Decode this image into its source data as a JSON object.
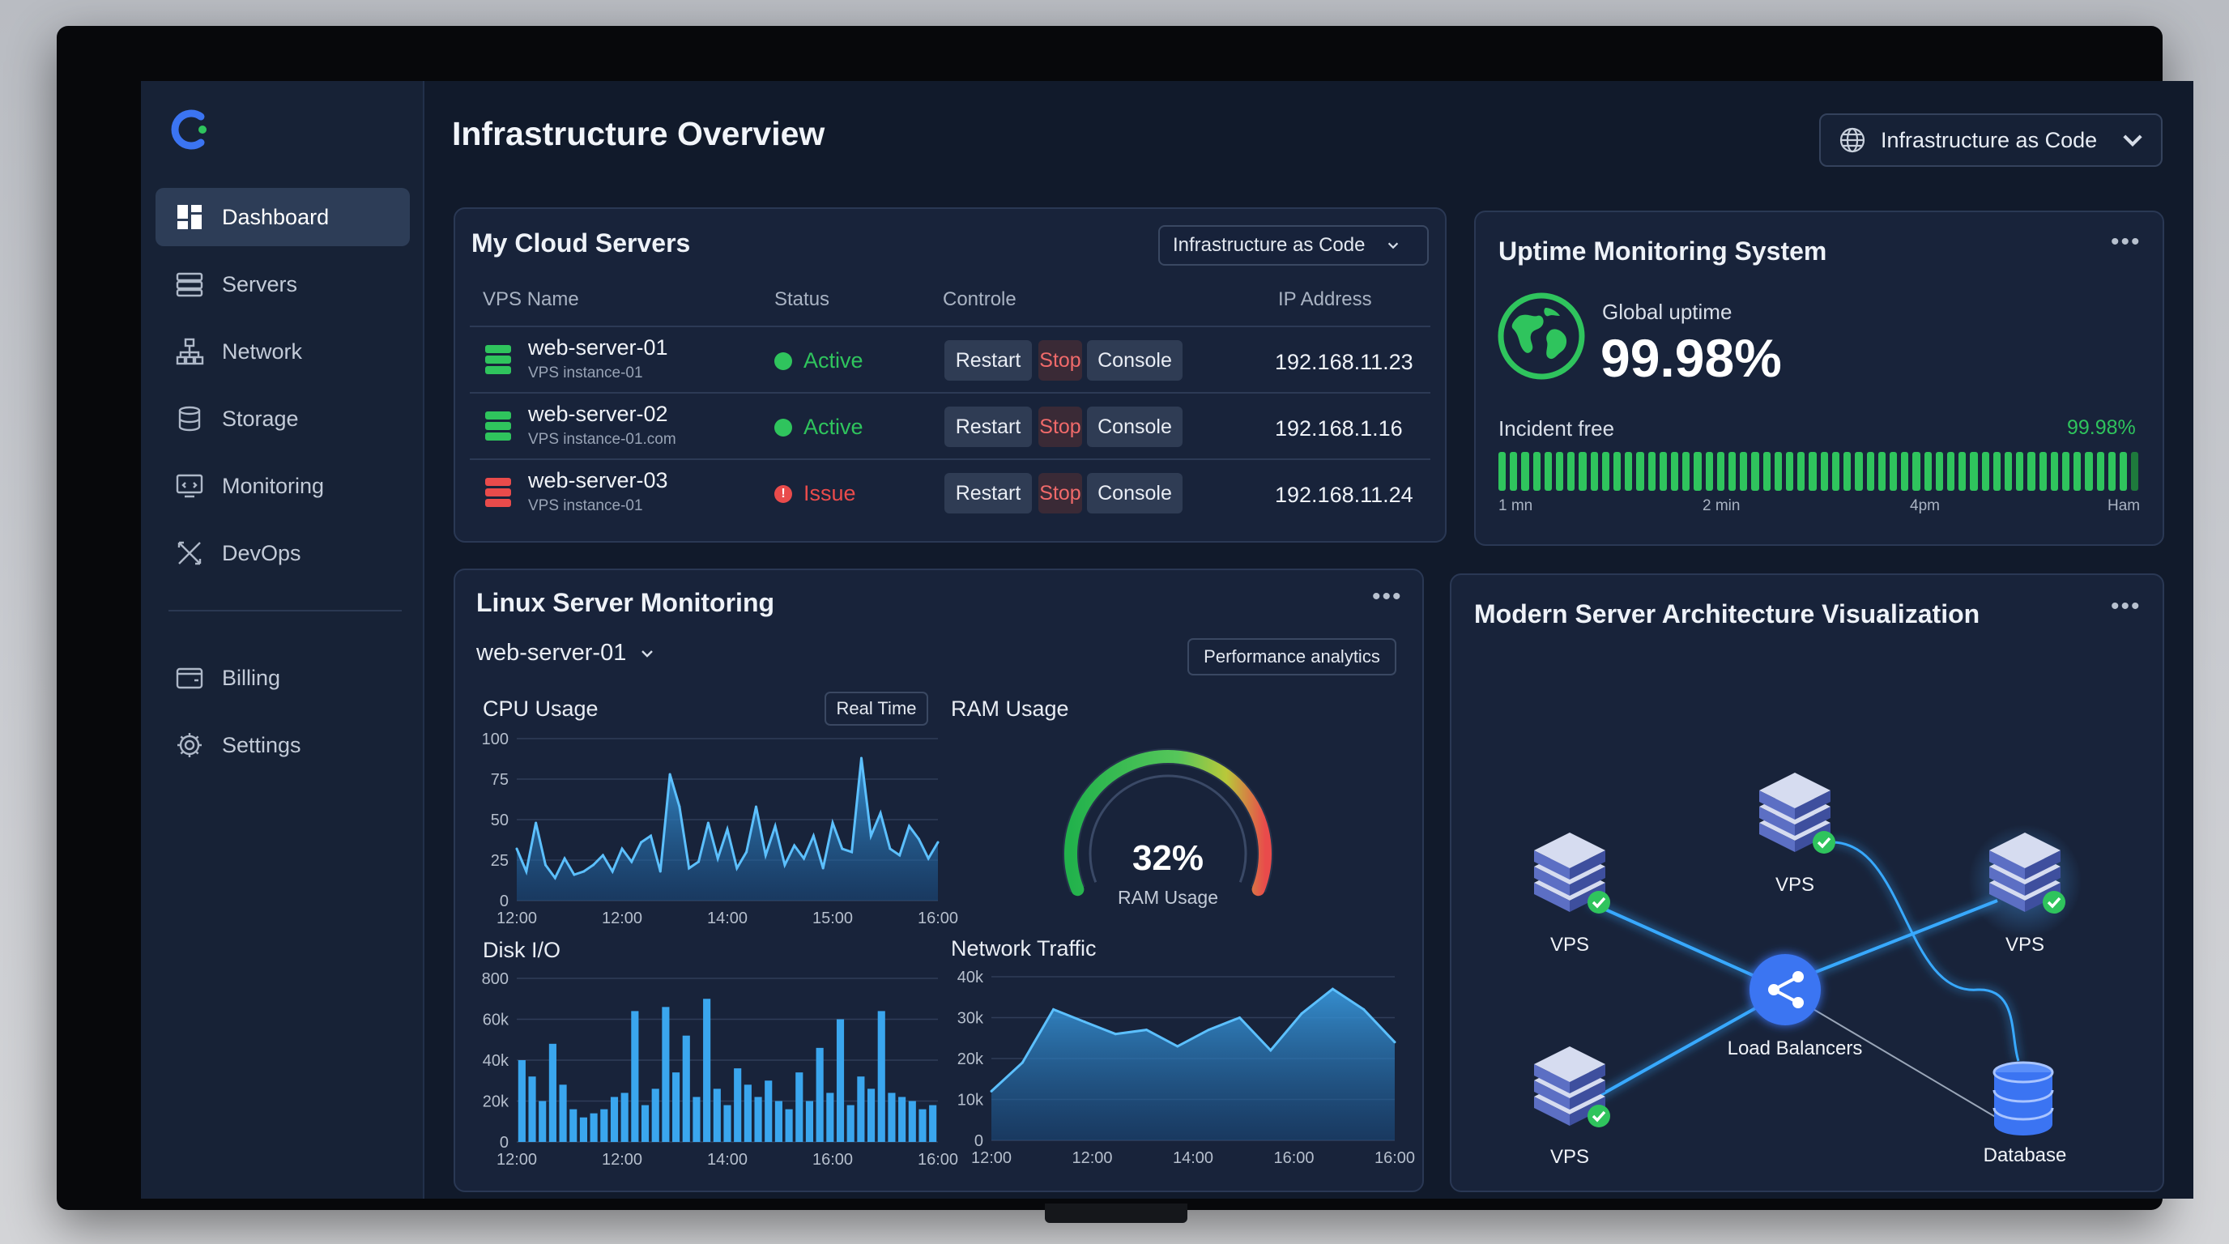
{
  "sidebar": {
    "items": [
      {
        "label": "Dashboard",
        "icon": "dashboard-icon",
        "active": true
      },
      {
        "label": "Servers",
        "icon": "servers-icon"
      },
      {
        "label": "Network",
        "icon": "network-icon"
      },
      {
        "label": "Storage",
        "icon": "storage-icon"
      },
      {
        "label": "Monitoring",
        "icon": "monitoring-icon"
      },
      {
        "label": "DevOps",
        "icon": "devops-icon"
      }
    ],
    "secondary": [
      {
        "label": "Billing",
        "icon": "billing-icon"
      },
      {
        "label": "Settings",
        "icon": "settings-icon"
      }
    ]
  },
  "header": {
    "title": "Infrastructure Overview",
    "select_value": "Infrastructure  as Code"
  },
  "cloud_servers": {
    "title": "My Cloud Servers",
    "select_value": "Infrastructure as Code",
    "columns": [
      "VPS Name",
      "Status",
      "Controle",
      "IP Address"
    ],
    "rows": [
      {
        "name": "web-server-01",
        "sub": "VPS instance-01",
        "status": "Active",
        "ip": "192.168.11.23",
        "color": "#2fc45d"
      },
      {
        "name": "web-server-02",
        "sub": "VPS instance-01.com",
        "status": "Active",
        "ip": "192.168.1.16",
        "color": "#2fc45d"
      },
      {
        "name": "web-server-03",
        "sub": "VPS instance-01",
        "status": "Issue",
        "ip": "192.168.11.24",
        "color": "#e94b4b"
      }
    ],
    "actions": {
      "restart": "Restart",
      "stop": "Stop",
      "console": "Console"
    }
  },
  "uptime": {
    "title": "Uptime Monitoring System",
    "global_label": "Global uptime",
    "global_value": "99.98%",
    "incident_label": "Incident free",
    "incident_value": "99.98%",
    "ticks": [
      "1 mn",
      "2 min",
      "4pm",
      "Ham"
    ]
  },
  "linux": {
    "title": "Linux Server Monitoring",
    "server": "web-server-01",
    "analytics_label": "Performance analytics",
    "realtime_label": "Real Time",
    "cpu_title": "CPU Usage",
    "ram_title": "RAM Usage",
    "ram_value": "32%",
    "ram_caption": "RAM Usage",
    "disk_title": "Disk I/O",
    "net_title": "Network Traffic"
  },
  "architecture": {
    "title": "Modern Server Architecture Visualization",
    "nodes": {
      "vps_a": "VPS",
      "vps_b": "VPS",
      "vps_c": "VPS",
      "vps_d": "VPS",
      "lb": "Load Balancers",
      "db": "Database"
    }
  },
  "chart_data": [
    {
      "type": "area",
      "title": "CPU Usage",
      "x_ticks": [
        "12:00",
        "12:00",
        "14:00",
        "15:00",
        "16:00"
      ],
      "y_ticks": [
        "100",
        "75",
        "50",
        "25",
        "0"
      ],
      "ylim": [
        0,
        100
      ],
      "values": [
        32,
        18,
        48,
        22,
        14,
        26,
        16,
        18,
        22,
        28,
        18,
        32,
        24,
        36,
        40,
        18,
        78,
        58,
        20,
        24,
        48,
        26,
        44,
        20,
        30,
        58,
        28,
        46,
        22,
        34,
        26,
        40,
        20,
        48,
        32,
        30,
        88,
        40,
        54,
        32,
        28,
        46,
        38,
        26,
        36
      ]
    },
    {
      "type": "gauge",
      "title": "RAM Usage",
      "value": 32
    },
    {
      "type": "bar",
      "title": "Disk I/O",
      "x_ticks": [
        "12:00",
        "12:00",
        "14:00",
        "16:00",
        "16:00"
      ],
      "y_ticks": [
        "800",
        "60k",
        "40k",
        "20k",
        "0"
      ],
      "ylim": [
        0,
        80
      ],
      "values": [
        40,
        32,
        20,
        48,
        28,
        16,
        12,
        14,
        16,
        22,
        24,
        64,
        18,
        26,
        66,
        34,
        52,
        22,
        70,
        26,
        18,
        36,
        28,
        22,
        30,
        20,
        16,
        34,
        20,
        46,
        24,
        60,
        18,
        32,
        26,
        64,
        24,
        22,
        20,
        16,
        18
      ]
    },
    {
      "type": "area",
      "title": "Network Traffic",
      "x_ticks": [
        "12:00",
        "12:00",
        "14:00",
        "16:00",
        "16:00"
      ],
      "y_ticks": [
        "40k",
        "30k",
        "20k",
        "10k",
        "0"
      ],
      "ylim": [
        0,
        40
      ],
      "values": [
        12,
        19,
        32,
        29,
        26,
        27,
        23,
        27,
        30,
        22,
        31,
        37,
        32,
        24
      ]
    }
  ]
}
